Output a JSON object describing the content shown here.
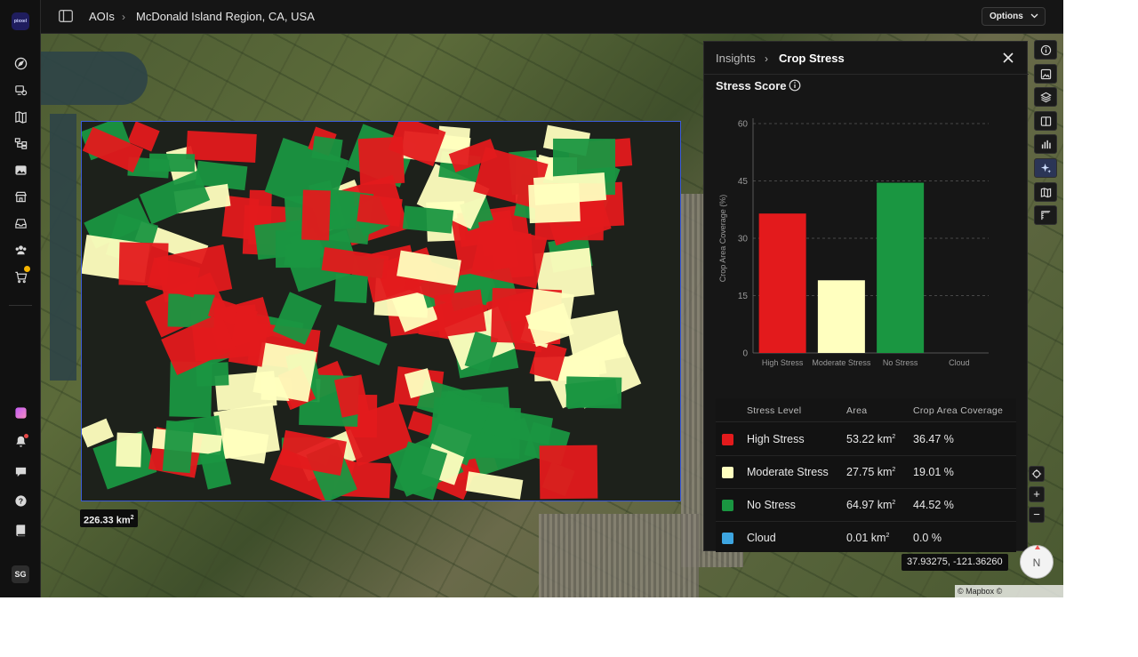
{
  "app": {
    "logo_text": "pixxel",
    "user_initials": "SG"
  },
  "breadcrumb": {
    "root": "AOIs",
    "current": "McDonald Island Region, CA, USA"
  },
  "toolbar": {
    "options_label": "Options"
  },
  "map": {
    "aoi_area_value": "226.33 km",
    "aoi_area_exp": "2",
    "coordinates": "37.93275, -121.36260",
    "attribution": "© Mapbox © OpenStreetMap",
    "compass_label": "N"
  },
  "insights": {
    "breadcrumb_root": "Insights",
    "title": "Crop Stress",
    "section_title": "Stress Score"
  },
  "chart_data": {
    "type": "bar",
    "categories": [
      "High Stress",
      "Moderate Stress",
      "No Stress",
      "Cloud"
    ],
    "values": [
      36.47,
      19.01,
      44.52,
      0.0
    ],
    "colors": [
      "#e31a1c",
      "#ffffbf",
      "#1a9641",
      "#3da5e0"
    ],
    "ylabel": "Crop Area Coverage (%)",
    "xlabel": "",
    "ylim": [
      0,
      60
    ],
    "yticks": [
      0,
      15,
      30,
      45,
      60
    ],
    "grid": true
  },
  "table": {
    "headers": [
      "Stress Level",
      "Area",
      "Crop Area Coverage"
    ],
    "rows": [
      {
        "level": "High Stress",
        "area": "53.22 km",
        "area_exp": "2",
        "coverage": "36.47 %",
        "color": "#e31a1c"
      },
      {
        "level": "Moderate Stress",
        "area": "27.75 km",
        "area_exp": "2",
        "coverage": "19.01 %",
        "color": "#ffffbf"
      },
      {
        "level": "No Stress",
        "area": "64.97 km",
        "area_exp": "2",
        "coverage": "44.52 %",
        "color": "#1a9641"
      },
      {
        "level": "Cloud",
        "area": "0.01 km",
        "area_exp": "2",
        "coverage": "0.0 %",
        "color": "#3da5e0"
      }
    ]
  },
  "tools": [
    "info-icon",
    "image-icon",
    "layers-icon",
    "split-view-icon",
    "chart-icon",
    "sparkle-icon",
    "map-icon",
    "ruler-icon"
  ],
  "map_controls": {
    "zoom_in": "+",
    "zoom_out": "−"
  }
}
